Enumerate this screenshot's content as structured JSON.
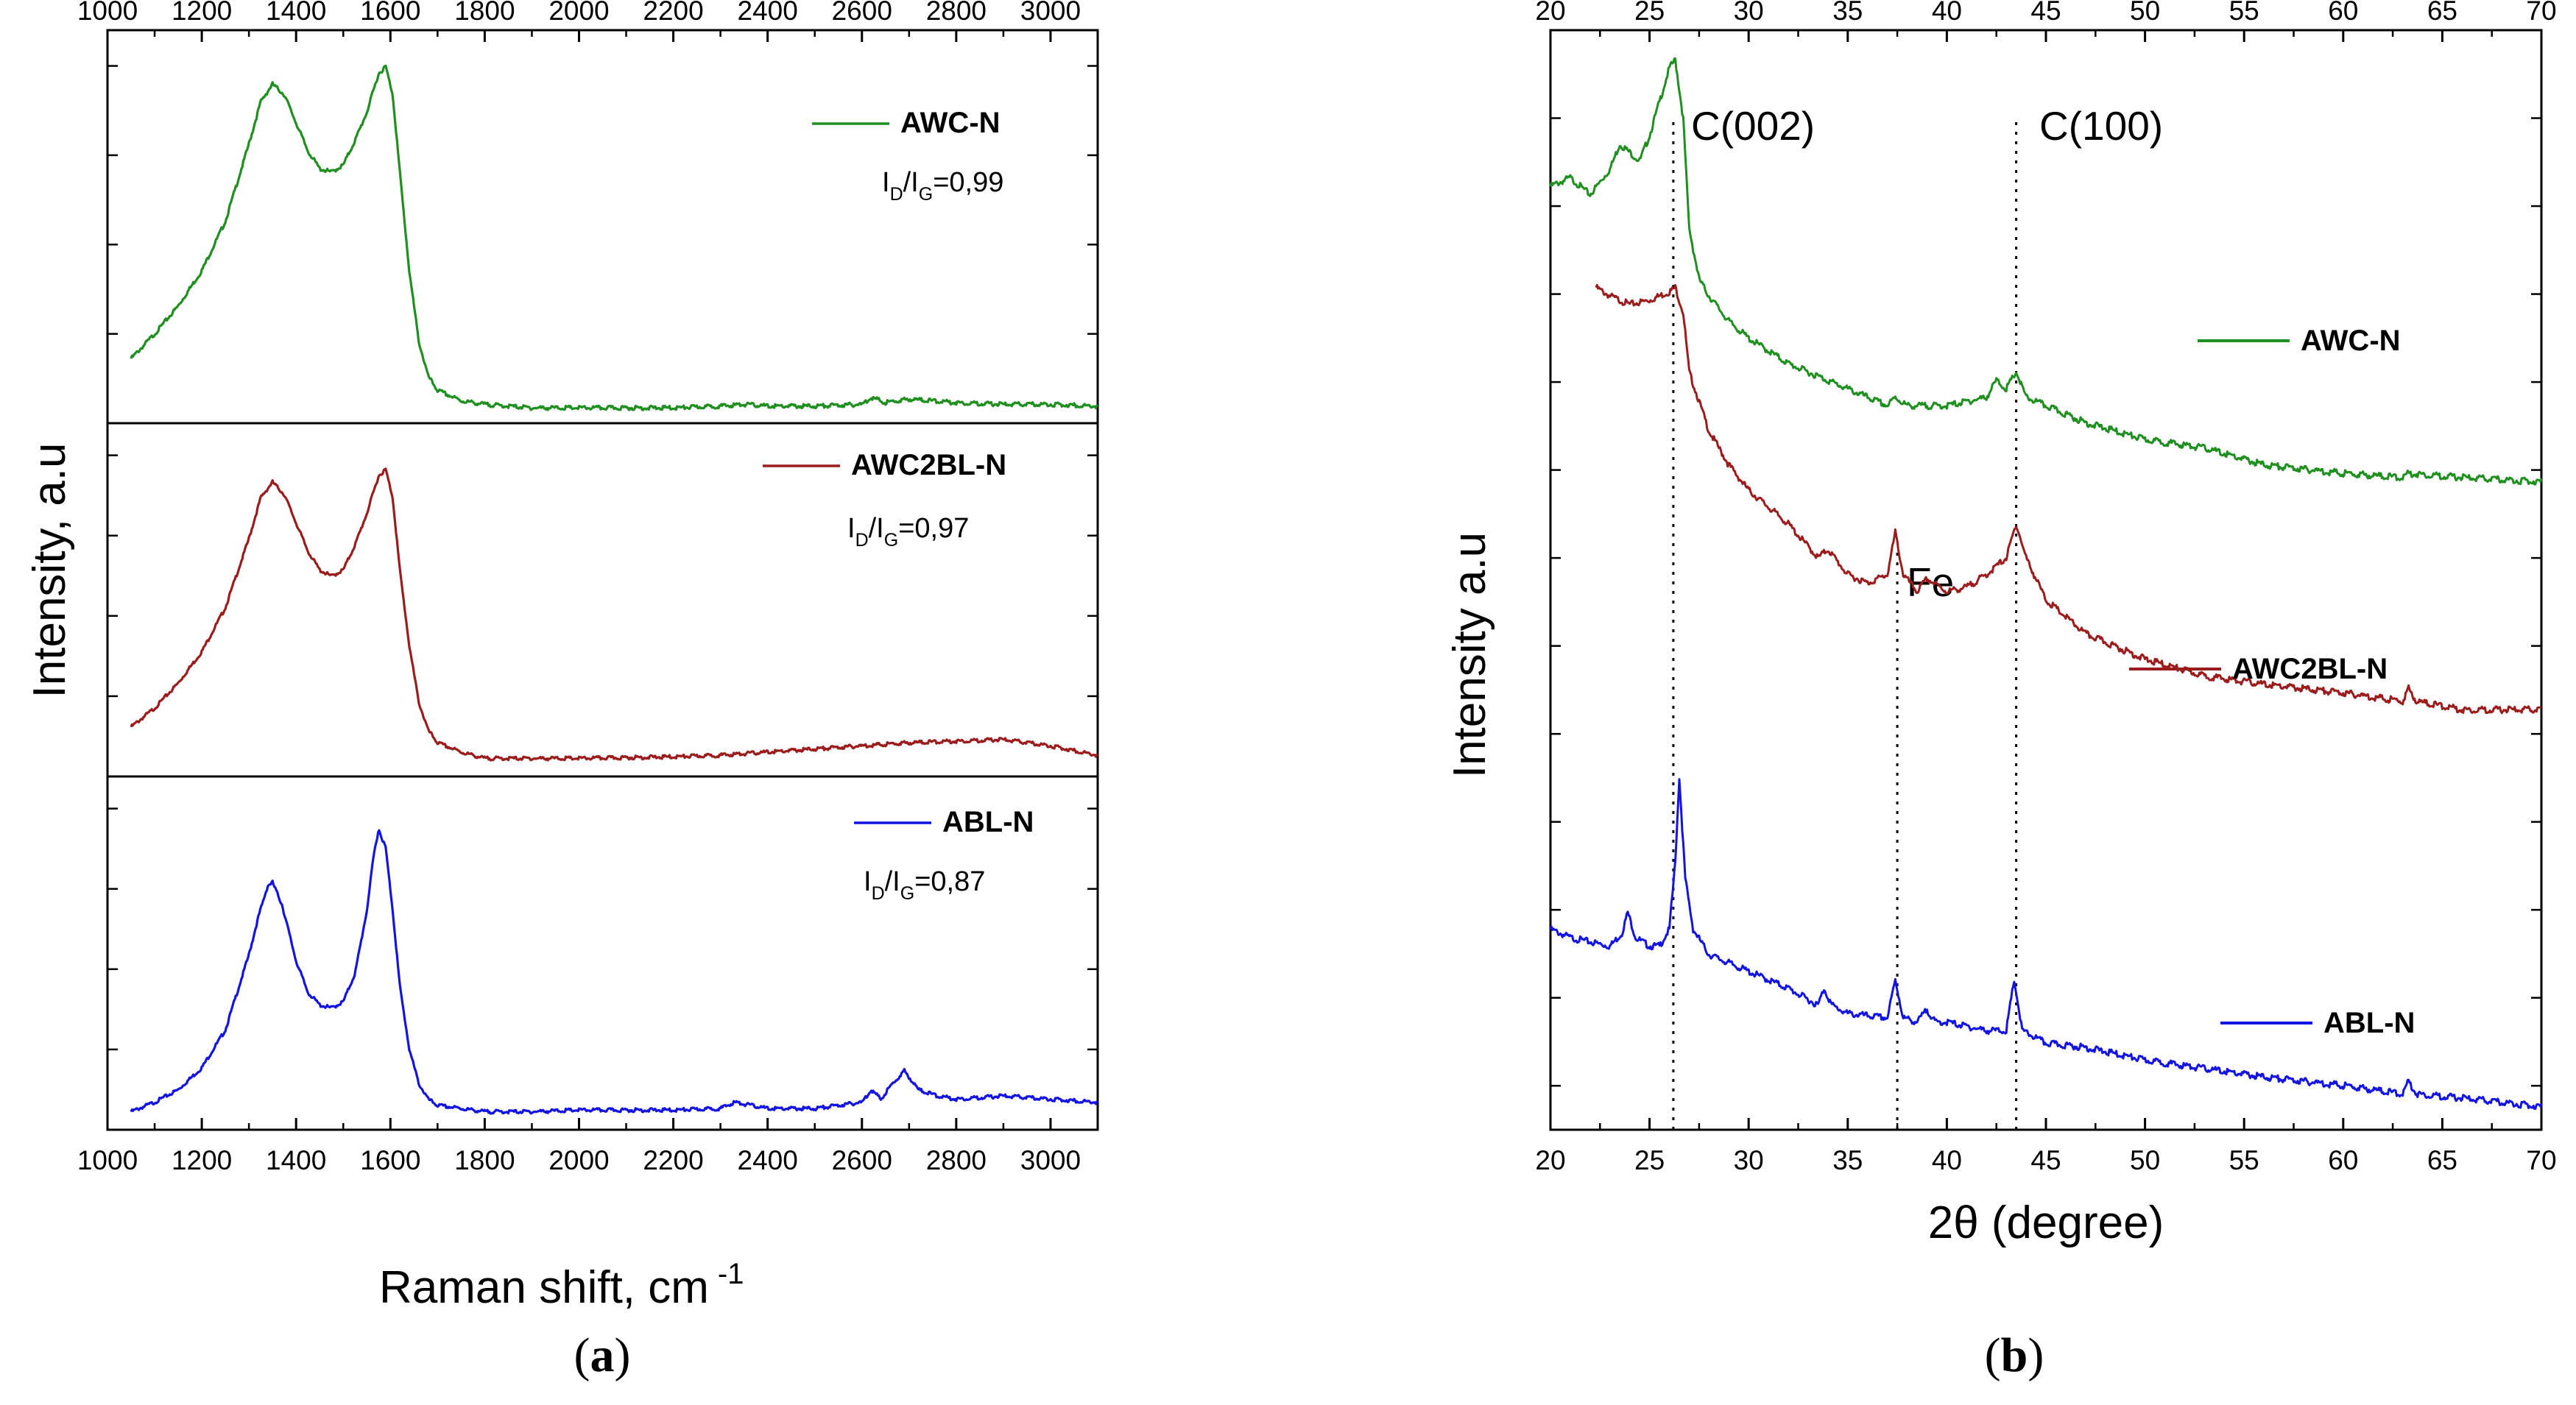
{
  "chart_data": [
    {
      "type": "line",
      "panel_label": {
        "open": "(",
        "letter": "a",
        "close": ")"
      },
      "xlabel": "Raman shift, cm",
      "xlabel_superscript": "-1",
      "ylabel": "Intensity, a.u",
      "xlim": [
        1000,
        3100
      ],
      "xticks": [
        "1000",
        "1200",
        "1400",
        "1600",
        "1800",
        "2000",
        "2200",
        "2400",
        "2600",
        "2800",
        "3000"
      ],
      "xtick_values": [
        1000,
        1200,
        1400,
        1600,
        1800,
        2000,
        2200,
        2400,
        2600,
        2800,
        3000
      ],
      "stacked_panels": 3,
      "y_tick_labels": "none",
      "series": [
        {
          "name": "AWC-N",
          "color": "#1f8f1f",
          "ratio": {
            "I": "I",
            "D": "D",
            "slash": "/",
            "G": "G",
            "value": "=0,99"
          },
          "ylim": [
            0,
            1.05
          ],
          "x": [
            1050,
            1100,
            1150,
            1200,
            1250,
            1300,
            1325,
            1350,
            1375,
            1400,
            1425,
            1450,
            1475,
            1500,
            1525,
            1550,
            1575,
            1590,
            1605,
            1620,
            1640,
            1660,
            1680,
            1700,
            1750,
            1800,
            1900,
            2000,
            2200,
            2300,
            2350,
            2400,
            2500,
            2600,
            2620,
            2650,
            2700,
            2750,
            2800,
            2900,
            3000,
            3100
          ],
          "y": [
            0.15,
            0.22,
            0.3,
            0.4,
            0.54,
            0.76,
            0.88,
            0.93,
            0.9,
            0.82,
            0.74,
            0.69,
            0.68,
            0.7,
            0.77,
            0.85,
            0.96,
            0.98,
            0.9,
            0.68,
            0.4,
            0.2,
            0.1,
            0.06,
            0.03,
            0.02,
            0.01,
            0.01,
            0.01,
            0.015,
            0.02,
            0.015,
            0.015,
            0.02,
            0.04,
            0.025,
            0.035,
            0.03,
            0.025,
            0.02,
            0.02,
            0.015
          ]
        },
        {
          "name": "AWC2BL-N",
          "color": "#9b1c1c",
          "ratio": {
            "I": "I",
            "D": "D",
            "slash": "/",
            "G": "G",
            "value": "=0,97"
          },
          "ylim": [
            0,
            1.05
          ],
          "x": [
            1050,
            1100,
            1150,
            1200,
            1250,
            1300,
            1325,
            1350,
            1375,
            1400,
            1425,
            1450,
            1475,
            1500,
            1525,
            1550,
            1575,
            1590,
            1605,
            1620,
            1640,
            1660,
            1680,
            1700,
            1750,
            1800,
            1900,
            2000,
            2200,
            2300,
            2400,
            2500,
            2600,
            2700,
            2800,
            2900,
            3000,
            3100
          ],
          "y": [
            0.12,
            0.18,
            0.26,
            0.36,
            0.5,
            0.72,
            0.85,
            0.9,
            0.86,
            0.77,
            0.68,
            0.62,
            0.6,
            0.62,
            0.7,
            0.8,
            0.92,
            0.94,
            0.85,
            0.62,
            0.38,
            0.2,
            0.11,
            0.07,
            0.04,
            0.02,
            0.02,
            0.02,
            0.025,
            0.03,
            0.04,
            0.05,
            0.06,
            0.07,
            0.075,
            0.08,
            0.06,
            0.03
          ]
        },
        {
          "name": "ABL-N",
          "color": "#1414e0",
          "ratio": {
            "I": "I",
            "D": "D",
            "slash": "/",
            "G": "G",
            "value": "=0,87"
          },
          "ylim": [
            0,
            1.05
          ],
          "x": [
            1050,
            1100,
            1150,
            1200,
            1250,
            1300,
            1320,
            1340,
            1350,
            1370,
            1400,
            1425,
            1450,
            1475,
            1500,
            1525,
            1550,
            1565,
            1575,
            1590,
            1605,
            1620,
            1640,
            1660,
            1680,
            1700,
            1750,
            1800,
            1900,
            2000,
            2200,
            2300,
            2330,
            2400,
            2500,
            2600,
            2620,
            2640,
            2660,
            2690,
            2720,
            2760,
            2800,
            2900,
            3000,
            3100
          ],
          "y": [
            0.02,
            0.05,
            0.09,
            0.16,
            0.28,
            0.52,
            0.64,
            0.74,
            0.75,
            0.68,
            0.5,
            0.4,
            0.36,
            0.35,
            0.37,
            0.46,
            0.66,
            0.84,
            0.92,
            0.86,
            0.66,
            0.42,
            0.22,
            0.11,
            0.06,
            0.04,
            0.03,
            0.02,
            0.02,
            0.025,
            0.025,
            0.03,
            0.05,
            0.03,
            0.03,
            0.05,
            0.09,
            0.06,
            0.1,
            0.15,
            0.09,
            0.07,
            0.06,
            0.07,
            0.06,
            0.05
          ]
        }
      ]
    },
    {
      "type": "line",
      "panel_label": {
        "open": "(",
        "letter": "b",
        "close": ")"
      },
      "xlabel": "2θ (degree)",
      "ylabel": "Intensity a.u",
      "xlim": [
        20,
        70
      ],
      "xticks": [
        "20",
        "25",
        "30",
        "35",
        "40",
        "45",
        "50",
        "55",
        "60",
        "65",
        "70"
      ],
      "xtick_values": [
        20,
        25,
        30,
        35,
        40,
        45,
        50,
        55,
        60,
        65,
        70
      ],
      "ylim": [
        0,
        1.25
      ],
      "y_tick_labels": "none",
      "annotations": [
        {
          "text": "C(002)",
          "x": 26.2,
          "line_from": 0.0,
          "line_to": 1.18
        },
        {
          "text": "C(100)",
          "x": 43.5,
          "line_from": 0.0,
          "line_to": 1.18
        },
        {
          "text": "Fe",
          "x": 37.5,
          "line_from": 0.0,
          "line_to": 0.67
        }
      ],
      "series": [
        {
          "name": "AWC-N",
          "color": "#1f8f1f",
          "x": [
            20,
            21,
            22,
            23,
            23.5,
            24,
            24.5,
            25,
            25.5,
            26,
            26.3,
            26.7,
            27,
            27.5,
            28,
            29,
            30,
            32,
            34,
            36,
            37,
            37.4,
            38,
            40,
            42,
            42.5,
            43,
            43.5,
            44,
            45,
            47,
            50,
            53,
            56,
            60,
            63,
            63.3,
            66,
            70
          ],
          "y": [
            1.1,
            1.11,
            1.09,
            1.12,
            1.15,
            1.14,
            1.13,
            1.16,
            1.2,
            1.24,
            1.25,
            1.18,
            1.05,
            0.99,
            0.97,
            0.94,
            0.92,
            0.89,
            0.87,
            0.85,
            0.84,
            0.85,
            0.84,
            0.84,
            0.85,
            0.87,
            0.86,
            0.88,
            0.85,
            0.84,
            0.82,
            0.8,
            0.79,
            0.77,
            0.76,
            0.755,
            0.76,
            0.755,
            0.75
          ]
        },
        {
          "name": "AWC2BL-N",
          "color": "#9b1c1c",
          "x": [
            22.3,
            23,
            24,
            25,
            25.5,
            26,
            26.3,
            26.7,
            27,
            28,
            29,
            30,
            32,
            33.5,
            34,
            35,
            36,
            37,
            37.4,
            37.8,
            38.5,
            39,
            40,
            41,
            42,
            43,
            43.5,
            44,
            45,
            47,
            50,
            53,
            56,
            60,
            63,
            63.3,
            63.7,
            66,
            70
          ],
          "y": [
            0.98,
            0.97,
            0.96,
            0.965,
            0.97,
            0.975,
            0.98,
            0.95,
            0.88,
            0.81,
            0.77,
            0.74,
            0.7,
            0.66,
            0.67,
            0.64,
            0.63,
            0.64,
            0.69,
            0.64,
            0.62,
            0.635,
            0.62,
            0.625,
            0.64,
            0.66,
            0.7,
            0.66,
            0.61,
            0.57,
            0.54,
            0.52,
            0.51,
            0.5,
            0.49,
            0.505,
            0.49,
            0.48,
            0.48
          ]
        },
        {
          "name": "ABL-N",
          "color": "#1414e0",
          "x": [
            20,
            21,
            22,
            23,
            23.6,
            23.9,
            24.3,
            25,
            25.5,
            26,
            26.3,
            26.5,
            26.8,
            27.2,
            28,
            30,
            32,
            33.5,
            33.8,
            34.2,
            35,
            37,
            37.4,
            37.8,
            38.5,
            39,
            39.4,
            40,
            42,
            43,
            43.4,
            43.8,
            45,
            47,
            50,
            53,
            56,
            60,
            63,
            63.3,
            63.7,
            66,
            70
          ],
          "y": [
            0.22,
            0.21,
            0.205,
            0.2,
            0.215,
            0.24,
            0.21,
            0.2,
            0.2,
            0.22,
            0.3,
            0.4,
            0.28,
            0.22,
            0.19,
            0.17,
            0.15,
            0.13,
            0.15,
            0.13,
            0.12,
            0.115,
            0.16,
            0.115,
            0.11,
            0.125,
            0.11,
            0.11,
            0.1,
            0.1,
            0.16,
            0.1,
            0.085,
            0.08,
            0.065,
            0.055,
            0.045,
            0.035,
            0.025,
            0.04,
            0.025,
            0.02,
            0.01
          ]
        }
      ]
    }
  ]
}
